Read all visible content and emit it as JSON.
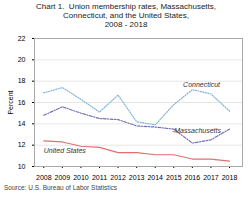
{
  "chart_data": {
    "type": "line",
    "title": "Chart 1.  Union membership rates, Massachusetts,\nConnecticut, and the United States,\n2008 - 2018",
    "ylabel": "Percent",
    "caption": "Source: U.S. Bureau of Labor Statistics",
    "x": [
      2008,
      2009,
      2010,
      2011,
      2012,
      2013,
      2014,
      2015,
      2016,
      2017,
      2018
    ],
    "xlim": [
      2007.5,
      2018.7
    ],
    "xticks": [
      2008,
      2009,
      2010,
      2011,
      2012,
      2013,
      2014,
      2015,
      2016,
      2017,
      2018
    ],
    "ylim": [
      10,
      22
    ],
    "yticks": [
      10,
      12,
      14,
      16,
      18,
      20,
      22
    ],
    "grid": true,
    "series": [
      {
        "name": "Connecticut",
        "color": "#7eb4d4",
        "line_style": "dotted",
        "values": [
          16.9,
          17.4,
          16.3,
          15.1,
          16.7,
          14.2,
          13.9,
          15.8,
          17.2,
          16.8,
          15.2
        ]
      },
      {
        "name": "Massachusetts",
        "color": "#7070b8",
        "line_style": "dashdot",
        "values": [
          14.8,
          15.6,
          15.0,
          14.5,
          14.4,
          13.8,
          13.7,
          13.5,
          12.2,
          12.5,
          13.5
        ]
      },
      {
        "name": "United States",
        "color": "#e07070",
        "line_style": "solid",
        "values": [
          12.4,
          12.3,
          11.9,
          11.8,
          11.3,
          11.3,
          11.1,
          11.1,
          10.7,
          10.7,
          10.5
        ]
      }
    ],
    "annotations": [
      {
        "text": "Connecticut",
        "x": 2015.5,
        "y": 17.5
      },
      {
        "text": "-Massachusetts",
        "x": 2014.9,
        "y": 13.1
      },
      {
        "text": "United States",
        "x": 2008.0,
        "y": 11.3
      }
    ]
  }
}
